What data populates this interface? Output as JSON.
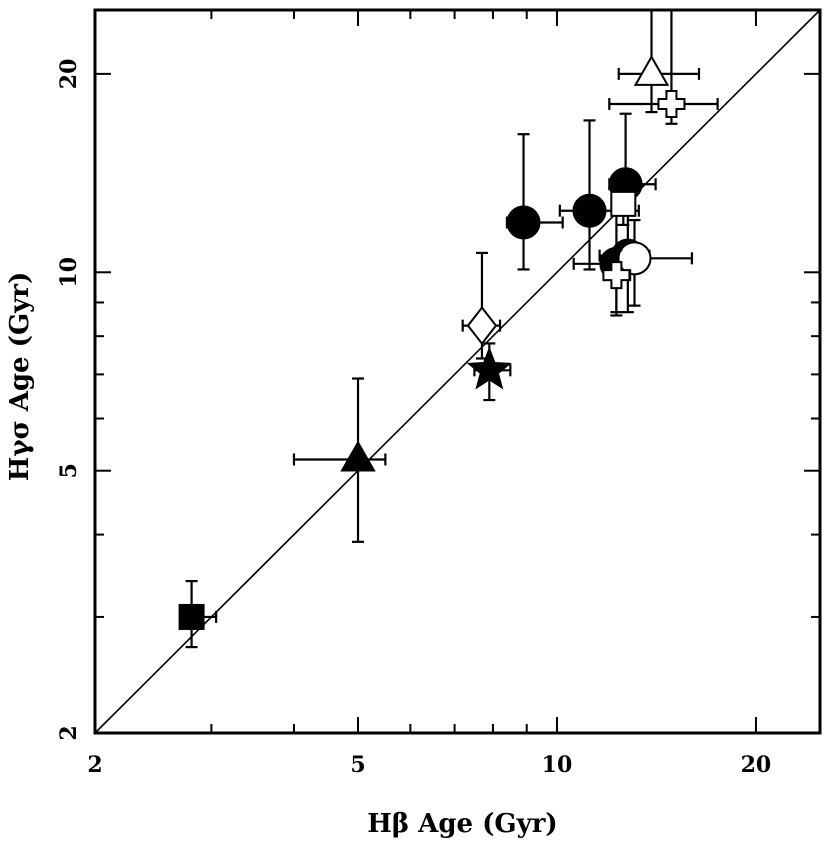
{
  "chart_data": {
    "type": "scatter",
    "title": "",
    "xlabel": "Hβ Age (Gyr)",
    "ylabel": "Hγσ Age (Gyr)",
    "xscale": "log",
    "yscale": "log",
    "xlim": [
      2,
      25
    ],
    "ylim": [
      2,
      25
    ],
    "x_ticks": [
      2,
      5,
      10,
      20
    ],
    "y_ticks": [
      2,
      5,
      10,
      20
    ],
    "x_tick_labels": [
      "2",
      "5",
      "10",
      "20"
    ],
    "y_tick_labels": [
      "2",
      "5",
      "10",
      "20"
    ],
    "reference_line": "one-to-one (y = x)",
    "points": [
      {
        "marker": "square",
        "filled": true,
        "x": 2.8,
        "y": 3.0,
        "xerr": [
          2.7,
          3.05
        ],
        "yerr": [
          2.7,
          3.4
        ]
      },
      {
        "marker": "triangle",
        "filled": true,
        "x": 5.0,
        "y": 5.2,
        "xerr": [
          4.0,
          5.5
        ],
        "yerr": [
          3.9,
          6.9
        ]
      },
      {
        "marker": "star",
        "filled": true,
        "x": 7.9,
        "y": 7.1,
        "xerr": [
          7.5,
          8.5
        ],
        "yerr": [
          6.4,
          7.8
        ]
      },
      {
        "marker": "diamond",
        "filled": false,
        "x": 7.7,
        "y": 8.3,
        "xerr": [
          7.2,
          8.2
        ],
        "yerr": [
          7.4,
          10.7
        ]
      },
      {
        "marker": "circle",
        "filled": true,
        "x": 8.9,
        "y": 11.9,
        "xerr": [
          8.4,
          10.2
        ],
        "yerr": [
          10.1,
          16.2
        ]
      },
      {
        "marker": "circle",
        "filled": true,
        "x": 11.2,
        "y": 12.4,
        "xerr": [
          10.1,
          13.3
        ],
        "yerr": [
          10.1,
          17.0
        ]
      },
      {
        "marker": "circle",
        "filled": true,
        "x": 12.7,
        "y": 13.6,
        "xerr": [
          12.0,
          14.1
        ],
        "yerr": [
          12.3,
          17.4
        ]
      },
      {
        "marker": "circle",
        "filled": true,
        "x": 12.3,
        "y": 10.3,
        "xerr": [
          10.6,
          13.4
        ],
        "yerr": [
          8.6,
          12.8
        ]
      },
      {
        "marker": "circle",
        "filled": true,
        "x": 12.8,
        "y": 10.6,
        "xerr": [
          11.6,
          13.8
        ],
        "yerr": [
          8.7,
          13.2
        ]
      },
      {
        "marker": "circle",
        "filled": false,
        "x": 13.1,
        "y": 10.5,
        "xerr": [
          12.1,
          16.0
        ],
        "yerr": [
          8.9,
          12.0
        ]
      },
      {
        "marker": "cross",
        "filled": false,
        "x": 12.3,
        "y": 9.9,
        "xerr": [
          11.8,
          12.9
        ],
        "yerr": [
          8.7,
          10.8
        ]
      },
      {
        "marker": "square",
        "filled": false,
        "x": 12.6,
        "y": 12.7,
        "xerr": [
          12.3,
          12.9
        ],
        "yerr": [
          11.8,
          13.3
        ]
      },
      {
        "marker": "triangle",
        "filled": false,
        "x": 13.9,
        "y": 20.0,
        "xerr": [
          12.4,
          16.4
        ],
        "yerr": [
          17.5,
          25.0
        ]
      },
      {
        "marker": "cross",
        "filled": false,
        "x": 14.9,
        "y": 18.0,
        "xerr": [
          12.0,
          17.5
        ],
        "yerr": [
          16.8,
          25.0
        ]
      }
    ]
  }
}
